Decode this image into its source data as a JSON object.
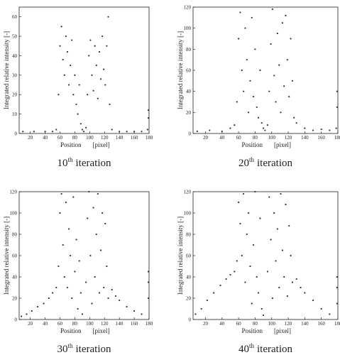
{
  "chart_data": [
    {
      "type": "scatter",
      "color": "#333333",
      "xlabel": "Position",
      "xunit": "[pixel]",
      "ylabel": "Integrated relative intensity [-]",
      "caption": {
        "number": "10",
        "suffix": "th",
        "text": "iteration"
      },
      "xlim": [
        5,
        180
      ],
      "ylim": [
        0,
        65
      ],
      "xticks": [
        20,
        40,
        60,
        80,
        100,
        120,
        140,
        160,
        180
      ],
      "yticks": [
        0,
        10,
        20,
        30,
        40,
        50,
        60
      ],
      "x": [
        10,
        25,
        40,
        50,
        55,
        58,
        60,
        62,
        64,
        66,
        68,
        70,
        72,
        74,
        76,
        78,
        80,
        82,
        84,
        86,
        88,
        90,
        92,
        95,
        97,
        99,
        101,
        103,
        105,
        107,
        109,
        111,
        113,
        115,
        117,
        119,
        121,
        123,
        125,
        127,
        130,
        140,
        150,
        160,
        170,
        178,
        179,
        179
      ],
      "y": [
        1,
        1,
        1,
        1,
        2,
        20,
        45,
        55,
        38,
        30,
        50,
        42,
        25,
        35,
        48,
        20,
        30,
        15,
        10,
        25,
        5,
        2,
        1,
        3,
        20,
        40,
        48,
        30,
        22,
        45,
        35,
        18,
        42,
        28,
        50,
        33,
        25,
        45,
        60,
        15,
        2,
        1,
        1,
        1,
        1,
        2,
        8,
        12
      ]
    },
    {
      "type": "scatter",
      "color": "#333333",
      "xlabel": "Position",
      "xunit": "[pixel]",
      "ylabel": "Integrated relative intensity [-]",
      "caption": {
        "number": "20",
        "suffix": "th",
        "text": "iteration"
      },
      "xlim": [
        5,
        180
      ],
      "ylim": [
        0,
        120
      ],
      "xticks": [
        20,
        40,
        60,
        80,
        100,
        120,
        140,
        160,
        180
      ],
      "yticks": [
        0,
        20,
        40,
        60,
        80,
        100,
        120
      ],
      "x": [
        10,
        25,
        40,
        50,
        55,
        58,
        60,
        62,
        64,
        66,
        68,
        70,
        72,
        74,
        76,
        78,
        80,
        82,
        84,
        86,
        88,
        90,
        92,
        95,
        97,
        99,
        101,
        103,
        105,
        107,
        109,
        111,
        113,
        115,
        117,
        119,
        121,
        123,
        125,
        127,
        130,
        140,
        150,
        160,
        170,
        178,
        179,
        179
      ],
      "y": [
        2,
        3,
        2,
        5,
        8,
        30,
        90,
        115,
        60,
        40,
        100,
        70,
        20,
        50,
        110,
        35,
        80,
        25,
        15,
        60,
        10,
        5,
        3,
        8,
        40,
        85,
        118,
        55,
        30,
        95,
        65,
        20,
        105,
        45,
        112,
        70,
        35,
        90,
        50,
        15,
        10,
        5,
        3,
        4,
        3,
        5,
        25,
        40
      ]
    },
    {
      "type": "scatter",
      "color": "#333333",
      "xlabel": "Position",
      "xunit": "[pixel]",
      "ylabel": "Integrated relative intensity [-]",
      "caption": {
        "number": "30",
        "suffix": "th",
        "text": "iteration"
      },
      "xlim": [
        5,
        180
      ],
      "ylim": [
        0,
        120
      ],
      "xticks": [
        20,
        40,
        60,
        80,
        100,
        120,
        140,
        160,
        180
      ],
      "yticks": [
        0,
        20,
        40,
        60,
        80,
        100,
        120
      ],
      "x": [
        8,
        15,
        22,
        30,
        38,
        45,
        50,
        55,
        58,
        60,
        62,
        64,
        66,
        68,
        70,
        72,
        74,
        76,
        78,
        80,
        82,
        84,
        86,
        88,
        90,
        95,
        97,
        99,
        101,
        103,
        105,
        107,
        109,
        111,
        113,
        115,
        117,
        119,
        121,
        123,
        125,
        130,
        135,
        140,
        150,
        160,
        170,
        179,
        179,
        179
      ],
      "y": [
        3,
        5,
        8,
        12,
        15,
        20,
        25,
        30,
        50,
        100,
        118,
        70,
        40,
        110,
        30,
        85,
        60,
        20,
        115,
        45,
        75,
        10,
        55,
        25,
        5,
        35,
        95,
        120,
        60,
        15,
        105,
        40,
        80,
        118,
        25,
        65,
        100,
        30,
        90,
        50,
        20,
        28,
        22,
        18,
        12,
        8,
        5,
        20,
        35,
        45
      ]
    },
    {
      "type": "scatter",
      "color": "#333333",
      "xlabel": "Position",
      "xunit": "[pixel]",
      "ylabel": "Integrated relative intensity [-]",
      "caption": {
        "number": "40",
        "suffix": "th",
        "text": "iteration"
      },
      "xlim": [
        5,
        180
      ],
      "ylim": [
        0,
        120
      ],
      "xticks": [
        20,
        40,
        60,
        80,
        100,
        120,
        140,
        160,
        180
      ],
      "yticks": [
        0,
        20,
        40,
        60,
        80,
        100,
        120
      ],
      "x": [
        8,
        15,
        22,
        30,
        38,
        45,
        50,
        55,
        58,
        60,
        62,
        64,
        66,
        68,
        70,
        72,
        74,
        76,
        78,
        80,
        82,
        84,
        86,
        88,
        90,
        95,
        97,
        99,
        101,
        103,
        105,
        107,
        109,
        111,
        113,
        115,
        117,
        119,
        121,
        123,
        125,
        130,
        135,
        140,
        150,
        160,
        170,
        179,
        179,
        179
      ],
      "y": [
        5,
        10,
        18,
        25,
        32,
        38,
        42,
        45,
        55,
        110,
        90,
        60,
        118,
        35,
        80,
        100,
        50,
        15,
        70,
        120,
        40,
        25,
        95,
        10,
        4,
        45,
        115,
        75,
        20,
        100,
        55,
        85,
        30,
        118,
        65,
        40,
        108,
        22,
        88,
        60,
        35,
        38,
        30,
        25,
        18,
        10,
        5,
        15,
        30,
        40
      ]
    }
  ]
}
